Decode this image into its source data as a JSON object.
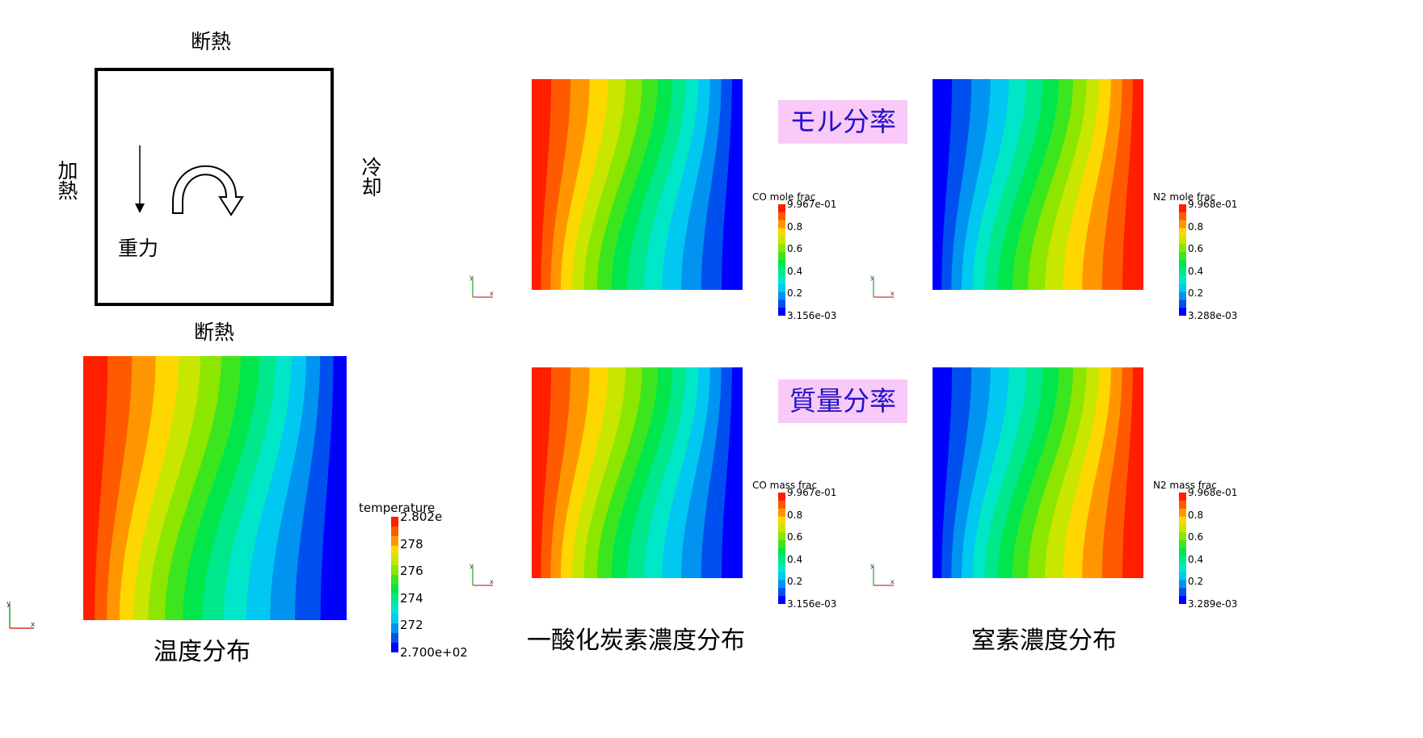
{
  "schematic": {
    "top_label": "断熱",
    "bottom_label": "断熱",
    "left_label": "加熱",
    "right_label": "冷却",
    "gravity_label": "重力"
  },
  "captions": {
    "temperature": "温度分布",
    "co": "一酸化炭素濃度分布",
    "n2": "窒素濃度分布"
  },
  "row_labels": {
    "mole": "モル分率",
    "mass": "質量分率"
  },
  "colorbars": {
    "temperature": {
      "title": "temperature",
      "max": "2.802e",
      "ticks": [
        "278",
        "276",
        "274",
        "272"
      ],
      "min": "2.700e+02"
    },
    "co_mole": {
      "title": "CO mole frac",
      "max": "9.967e-01",
      "ticks": [
        "0.8",
        "0.6",
        "0.4",
        "0.2"
      ],
      "min": "3.156e-03"
    },
    "n2_mole": {
      "title": "N2 mole frac",
      "max": "9.968e-01",
      "ticks": [
        "0.8",
        "0.6",
        "0.4",
        "0.2"
      ],
      "min": "3.288e-03"
    },
    "co_mass": {
      "title": "CO mass frac",
      "max": "9.967e-01",
      "ticks": [
        "0.8",
        "0.6",
        "0.4",
        "0.2"
      ],
      "min": "3.156e-03"
    },
    "n2_mass": {
      "title": "N2 mass frac",
      "max": "9.968e-01",
      "ticks": [
        "0.8",
        "0.6",
        "0.4",
        "0.2"
      ],
      "min": "3.289e-03"
    }
  },
  "axis_triad": {
    "x": "x",
    "y": "y"
  },
  "colors": {
    "palette": [
      "#0000ff",
      "#0050f0",
      "#0093f0",
      "#00c8f0",
      "#00e6c8",
      "#00e88c",
      "#00e64b",
      "#3ce61e",
      "#8ce600",
      "#c8e600",
      "#ffd700",
      "#ff9600",
      "#ff5a00",
      "#ff1e00"
    ],
    "pink_box": "#f9c9f7",
    "pink_text": "#2413c8"
  }
}
